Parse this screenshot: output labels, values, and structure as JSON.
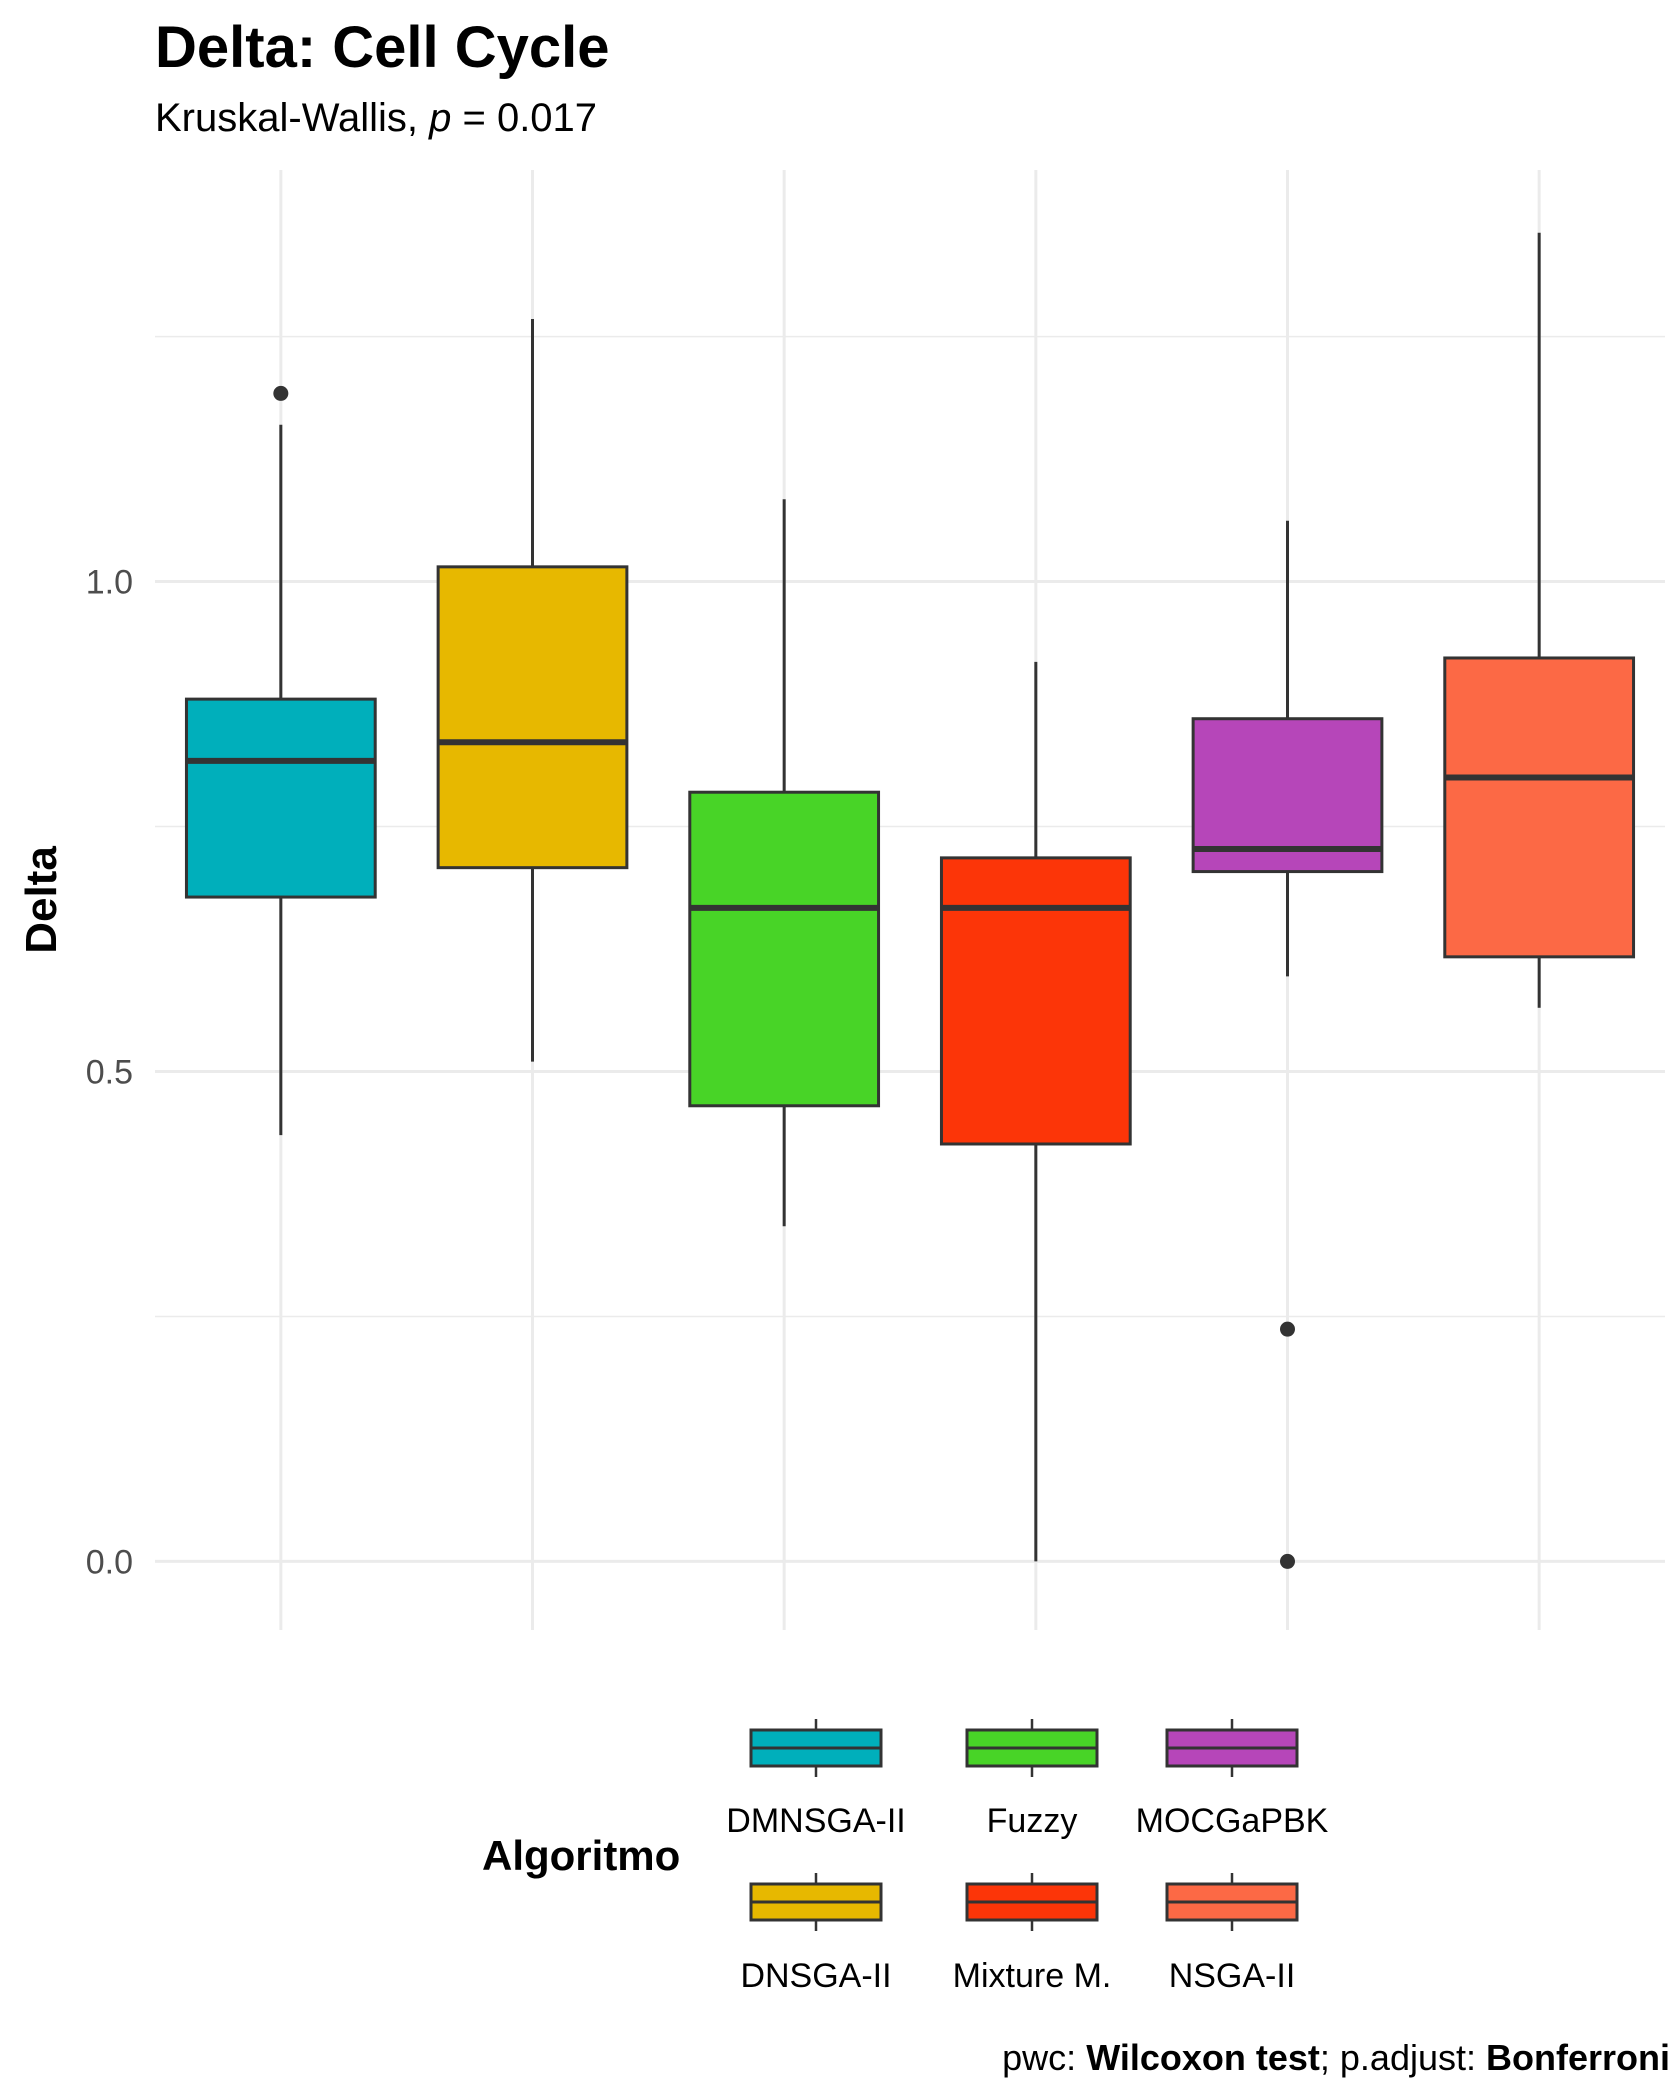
{
  "title": "Delta: Cell Cycle",
  "subtitle": {
    "prefix": "Kruskal-Wallis, ",
    "stat_symbol": "p",
    "suffix": " = 0.017"
  },
  "caption": {
    "part1": "pwc: ",
    "bold1": "Wilcoxon test",
    "part2": "; p.adjust: ",
    "bold2": "Bonferroni"
  },
  "colors": {
    "DMNSGA-II": "#00AFBB",
    "DNSGA-II": "#E7B800",
    "Fuzzy": "#48D427",
    "Mixture M.": "#FC3508",
    "MOCGaPBK": "#B646B9",
    "NSGA-II": "#FC6945",
    "outline": "#333333",
    "grid": "#EBEBEB",
    "axis_text": "#4D4D4D"
  },
  "chart_data": {
    "type": "boxplot",
    "title": "Delta: Cell Cycle",
    "xlabel": "",
    "ylabel": "Delta",
    "ylim": [
      -0.07,
      1.42
    ],
    "yticks": [
      0.0,
      0.5,
      1.0
    ],
    "ytick_labels": [
      "0.0",
      "0.5",
      "1.0"
    ],
    "grid": true,
    "legend_title": "Algoritmo",
    "legend_position": "bottom",
    "legend_rows": [
      [
        "DMNSGA-II",
        "Fuzzy",
        "MOCGaPBK"
      ],
      [
        "DNSGA-II",
        "Mixture M.",
        "NSGA-II"
      ]
    ],
    "series": [
      {
        "name": "DMNSGA-II",
        "whisker_low": 0.435,
        "q1": 0.678,
        "median": 0.817,
        "q3": 0.88,
        "whisker_high": 1.16,
        "outliers": [
          1.192
        ]
      },
      {
        "name": "DNSGA-II",
        "whisker_low": 0.51,
        "q1": 0.708,
        "median": 0.836,
        "q3": 1.015,
        "whisker_high": 1.268,
        "outliers": []
      },
      {
        "name": "Fuzzy",
        "whisker_low": 0.342,
        "q1": 0.465,
        "median": 0.667,
        "q3": 0.785,
        "whisker_high": 1.084,
        "outliers": []
      },
      {
        "name": "Mixture M.",
        "whisker_low": 0.0,
        "q1": 0.426,
        "median": 0.667,
        "q3": 0.718,
        "whisker_high": 0.918,
        "outliers": []
      },
      {
        "name": "MOCGaPBK",
        "whisker_low": 0.597,
        "q1": 0.704,
        "median": 0.727,
        "q3": 0.86,
        "whisker_high": 1.062,
        "outliers": [
          0.237,
          0.0
        ]
      },
      {
        "name": "NSGA-II",
        "whisker_low": 0.565,
        "q1": 0.617,
        "median": 0.8,
        "q3": 0.922,
        "whisker_high": 1.356,
        "outliers": []
      }
    ]
  }
}
